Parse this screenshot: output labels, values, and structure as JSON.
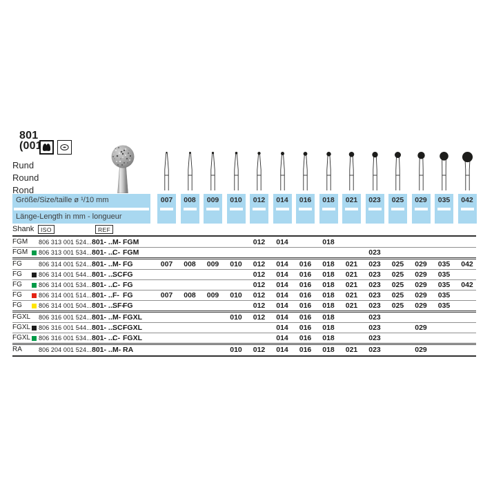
{
  "product": {
    "number": "801",
    "variant": "(001)",
    "names": [
      "Rund",
      "Round",
      "Rond"
    ]
  },
  "icons": [
    {
      "name": "tooth-icon"
    },
    {
      "name": "tooth-occlusal-icon"
    }
  ],
  "size_header": {
    "size_label": "Größe/Size/taille  ø  ¹/10 mm",
    "length_label": "Länge-Length in mm - longueur",
    "sizes": [
      "007",
      "008",
      "009",
      "010",
      "012",
      "014",
      "016",
      "018",
      "021",
      "023",
      "025",
      "029",
      "035",
      "042"
    ]
  },
  "table_header": {
    "shank": "Shank",
    "iso": "ISO",
    "ref": "REF"
  },
  "rows": [
    {
      "shank": "FGM",
      "dot": null,
      "iso": "806 313 001 524...",
      "ref_prefix": "801- ...",
      "grit": "M-",
      "ref_shank": "FGM",
      "sizes": [
        "012",
        "014",
        "018"
      ],
      "group_end": false
    },
    {
      "shank": "FGM",
      "dot": "green",
      "iso": "806 313 001 534...",
      "ref_prefix": "801- ...",
      "grit": "C-",
      "ref_shank": "FGM",
      "sizes": [
        "023"
      ],
      "group_end": true
    },
    {
      "shank": "FG",
      "dot": null,
      "iso": "806 314 001 524...",
      "ref_prefix": "801- ...",
      "grit": "M-",
      "ref_shank": "FG",
      "sizes": [
        "007",
        "008",
        "009",
        "010",
        "012",
        "014",
        "016",
        "018",
        "021",
        "023",
        "025",
        "029",
        "035",
        "042"
      ],
      "group_end": false
    },
    {
      "shank": "FG",
      "dot": "black",
      "iso": "806 314 001 544...",
      "ref_prefix": "801- ...",
      "grit": "SC-",
      "ref_shank": "FG",
      "sizes": [
        "012",
        "014",
        "016",
        "018",
        "021",
        "023",
        "025",
        "029",
        "035"
      ],
      "group_end": false
    },
    {
      "shank": "FG",
      "dot": "green",
      "iso": "806 314 001 534...",
      "ref_prefix": "801- ...",
      "grit": "C-",
      "ref_shank": "FG",
      "sizes": [
        "012",
        "014",
        "016",
        "018",
        "021",
        "023",
        "025",
        "029",
        "035",
        "042"
      ],
      "group_end": false
    },
    {
      "shank": "FG",
      "dot": "red",
      "iso": "806 314 001 514...",
      "ref_prefix": "801- ...",
      "grit": "F-",
      "ref_shank": "FG",
      "sizes": [
        "007",
        "008",
        "009",
        "010",
        "012",
        "014",
        "016",
        "018",
        "021",
        "023",
        "025",
        "029",
        "035"
      ],
      "group_end": false
    },
    {
      "shank": "FG",
      "dot": "yellow",
      "iso": "806 314 001 504...",
      "ref_prefix": "801- ...",
      "grit": "SF-",
      "ref_shank": "FG",
      "sizes": [
        "012",
        "014",
        "016",
        "018",
        "021",
        "023",
        "025",
        "029",
        "035"
      ],
      "group_end": true
    },
    {
      "shank": "FGXL",
      "dot": null,
      "iso": "806 316 001 524...",
      "ref_prefix": "801- ...",
      "grit": "M-",
      "ref_shank": "FGXL",
      "sizes": [
        "010",
        "012",
        "014",
        "016",
        "018",
        "023"
      ],
      "group_end": false
    },
    {
      "shank": "FGXL",
      "dot": "black",
      "iso": "806 316 001 544...",
      "ref_prefix": "801- ...",
      "grit": "SC-",
      "ref_shank": "FGXL",
      "sizes": [
        "014",
        "016",
        "018",
        "023",
        "029"
      ],
      "group_end": false
    },
    {
      "shank": "FGXL",
      "dot": "green",
      "iso": "806 316 001 534...",
      "ref_prefix": "801- ...",
      "grit": "C-",
      "ref_shank": "FGXL",
      "sizes": [
        "014",
        "016",
        "018",
        "023"
      ],
      "group_end": true
    },
    {
      "shank": "RA",
      "dot": null,
      "iso": "806 204 001 524...",
      "ref_prefix": "801- ...",
      "grit": "M-",
      "ref_shank": "RA",
      "sizes": [
        "010",
        "012",
        "014",
        "016",
        "018",
        "021",
        "023",
        "029"
      ],
      "group_end": true
    }
  ],
  "colors": {
    "table_blue": "#a9d8f0",
    "dot_green": "#009b48",
    "dot_red": "#e42313",
    "dot_yellow": "#ffe500",
    "dot_black": "#1c1c1c",
    "line_dark": "#2f2f2f",
    "text": "#1d1d1b"
  }
}
